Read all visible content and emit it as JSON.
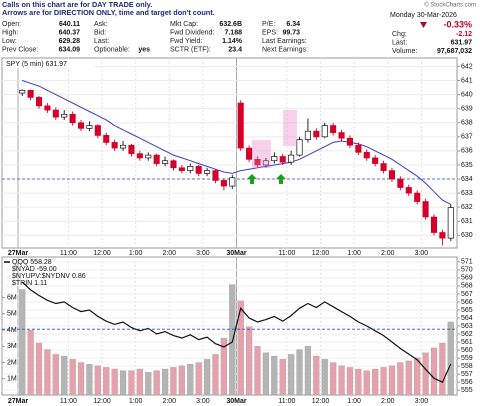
{
  "header": {
    "notes": [
      "Calls on this chart are for DAY TRADE only.",
      "Arrows are for DIRECTION ONLY, time and target don't count."
    ],
    "quote": [
      [
        [
          "Open:",
          "640.11"
        ],
        [
          "High:",
          "640.37"
        ],
        [
          "Low:",
          "629.28"
        ],
        [
          "Prev Close:",
          "634.09"
        ]
      ],
      [
        [
          "Ask:"
        ],
        [
          "Bid:"
        ],
        [
          "Last:"
        ],
        [
          "Optionable:",
          "yes"
        ]
      ],
      [
        [
          "Mkt Cap:",
          "632.6B"
        ],
        [
          "Fwd Dividend:",
          "7.188"
        ],
        [
          "Fwd Yield:",
          "1.14%"
        ],
        [
          "SCTR (ETF):",
          "23.4"
        ]
      ],
      [
        [
          "P/E:",
          "6.34"
        ],
        [
          "EPS:",
          "99.73"
        ],
        [
          "Last Earnings:"
        ],
        [
          "Next Earnings:"
        ]
      ]
    ],
    "copyright": "© StockCharts.com",
    "date": "Monday 30-Mar-2026",
    "pct_change": "-0.33%",
    "summary": [
      [
        "Chg:",
        "-2.12"
      ],
      [
        "Last:",
        "631.97"
      ],
      [
        "Volume:",
        "97,687,032"
      ]
    ]
  },
  "chart_data": [
    {
      "type": "candlestick",
      "title": "SPY (5 min) 631.97",
      "categories": [
        "27Mar",
        null,
        null,
        null,
        null,
        null,
        "11:00",
        null,
        null,
        null,
        "12:00",
        null,
        null,
        null,
        "1:00",
        null,
        null,
        null,
        "2:00",
        null,
        null,
        null,
        "3:00",
        null,
        null,
        null,
        "30Mar",
        null,
        null,
        null,
        null,
        null,
        "11:00",
        null,
        null,
        null,
        "12:00",
        null,
        null,
        null,
        "1:00",
        null,
        null,
        null,
        "2:00",
        null,
        null,
        null,
        "3:00",
        null,
        null,
        null
      ],
      "open": [
        640.11,
        640.3,
        639.8,
        639.2,
        638.9,
        638.4,
        638.6,
        638.0,
        637.6,
        637.8,
        637.1,
        636.6,
        636.2,
        636.4,
        635.8,
        635.5,
        635.7,
        635.1,
        635.3,
        634.8,
        634.6,
        634.9,
        634.4,
        634.6,
        633.9,
        633.5,
        639.4,
        636.2,
        635.4,
        635.0,
        635.3,
        635.6,
        635.2,
        635.7,
        636.8,
        637.4,
        637.0,
        637.8,
        637.3,
        636.9,
        636.4,
        635.9,
        635.5,
        635.1,
        634.6,
        634.0,
        633.4,
        633.0,
        632.4,
        631.3,
        630.2,
        629.8
      ],
      "high": [
        640.37,
        640.35,
        639.9,
        639.4,
        639.1,
        638.9,
        638.8,
        638.2,
        638.1,
        637.9,
        637.3,
        636.8,
        636.7,
        636.5,
        636.0,
        635.9,
        635.8,
        635.6,
        635.4,
        635.0,
        635.1,
        635.0,
        634.8,
        634.7,
        634.0,
        634.3,
        639.6,
        636.4,
        635.6,
        635.5,
        635.9,
        635.8,
        636.0,
        637.0,
        638.3,
        637.6,
        638.0,
        638.0,
        637.5,
        637.1,
        636.6,
        636.1,
        635.7,
        635.3,
        634.8,
        634.2,
        633.6,
        633.2,
        632.6,
        631.5,
        630.4,
        632.2
      ],
      "low": [
        639.9,
        639.6,
        639.0,
        638.7,
        638.2,
        638.2,
        637.8,
        637.4,
        637.4,
        636.9,
        636.4,
        636.0,
        636.0,
        635.6,
        635.3,
        635.3,
        634.9,
        634.9,
        634.6,
        634.4,
        634.4,
        634.2,
        634.2,
        633.7,
        633.2,
        633.3,
        636.0,
        635.2,
        634.8,
        634.8,
        635.1,
        635.0,
        635.0,
        635.6,
        636.6,
        636.8,
        636.9,
        637.1,
        636.7,
        636.2,
        635.7,
        635.3,
        634.9,
        634.4,
        633.8,
        633.2,
        632.8,
        632.2,
        631.1,
        630.0,
        629.28,
        629.6
      ],
      "close": [
        640.3,
        639.8,
        639.2,
        638.9,
        638.4,
        638.6,
        638.0,
        637.6,
        637.8,
        637.1,
        636.6,
        636.2,
        636.4,
        635.8,
        635.5,
        635.7,
        635.1,
        635.3,
        634.8,
        634.6,
        634.9,
        634.4,
        634.6,
        633.9,
        633.5,
        634.09,
        636.2,
        635.4,
        635.0,
        635.3,
        635.6,
        635.2,
        635.7,
        636.8,
        637.4,
        637.0,
        637.8,
        637.3,
        636.9,
        636.4,
        635.9,
        635.5,
        635.1,
        634.6,
        634.0,
        633.4,
        633.0,
        632.4,
        631.3,
        630.2,
        629.8,
        631.97
      ],
      "up_color": "#111111",
      "down_color": "#d4002a",
      "overlay": {
        "color": "#3b3bc9",
        "values": [
          641.0,
          640.8,
          640.6,
          640.3,
          640.0,
          639.7,
          639.4,
          639.1,
          638.8,
          638.5,
          638.2,
          637.8,
          637.5,
          637.2,
          636.9,
          636.6,
          636.3,
          636.0,
          635.7,
          635.5,
          635.3,
          635.1,
          634.9,
          634.7,
          634.5,
          634.4,
          634.6,
          634.7,
          634.8,
          634.9,
          635.0,
          635.1,
          635.2,
          635.4,
          635.7,
          636.0,
          636.3,
          636.6,
          636.7,
          636.6,
          636.5,
          636.3,
          636.0,
          635.7,
          635.4,
          635.0,
          634.6,
          634.2,
          633.7,
          633.1,
          632.5,
          632.2
        ]
      },
      "hline": {
        "value": 634,
        "color": "#2f4fc0"
      },
      "ylim": [
        629.1,
        642.6
      ],
      "yticks": [
        630,
        631,
        632,
        633,
        634,
        635,
        636,
        637,
        638,
        639,
        640,
        641,
        642
      ],
      "grid": true
    },
    {
      "type": "bar",
      "categories": [
        "27Mar",
        null,
        null,
        null,
        null,
        null,
        "11:00",
        null,
        null,
        null,
        "12:00",
        null,
        null,
        null,
        "1:00",
        null,
        null,
        null,
        "2:00",
        null,
        null,
        null,
        "3:00",
        null,
        null,
        null,
        "30Mar",
        null,
        null,
        null,
        null,
        null,
        "11:00",
        null,
        null,
        null,
        "12:00",
        null,
        null,
        null,
        "1:00",
        null,
        null,
        null,
        "2:00",
        null,
        null,
        null,
        "3:00",
        null,
        null,
        null
      ],
      "annotations": [
        "$NYAD -59.00",
        "$NYUPV:$NYDNV 0.86",
        "$TRIN 1.11"
      ],
      "series": [
        {
          "type": "bar",
          "colors": [
            "#e6a1ad",
            "#b4b4b4"
          ],
          "values": [
            6.5,
            4.0,
            3.2,
            2.8,
            2.5,
            2.4,
            2.2,
            2.0,
            1.9,
            1.8,
            1.7,
            1.6,
            1.5,
            1.5,
            1.6,
            1.4,
            1.5,
            1.6,
            1.7,
            1.8,
            1.9,
            2.0,
            2.2,
            2.5,
            3.5,
            6.8,
            5.8,
            4.2,
            3.0,
            2.6,
            2.4,
            2.2,
            2.5,
            2.8,
            3.0,
            2.4,
            2.2,
            2.0,
            1.8,
            1.7,
            1.6,
            1.5,
            1.6,
            1.7,
            1.8,
            2.0,
            2.1,
            2.3,
            2.6,
            2.9,
            3.2,
            4.5
          ]
        },
        {
          "type": "line",
          "name": "QQQ 558.28",
          "color": "#111111",
          "axis": "y2",
          "values": [
            568.5,
            567.5,
            566.8,
            566.2,
            565.8,
            566.0,
            565.3,
            564.8,
            565.0,
            564.2,
            563.6,
            563.2,
            563.5,
            562.8,
            562.4,
            562.7,
            562.0,
            562.3,
            561.8,
            561.5,
            561.9,
            561.3,
            561.6,
            560.8,
            560.4,
            561.0,
            565.2,
            564.0,
            563.5,
            563.8,
            564.2,
            563.6,
            564.3,
            565.2,
            565.8,
            565.3,
            566.0,
            565.4,
            564.8,
            564.2,
            563.5,
            563.0,
            562.4,
            561.8,
            561.0,
            560.2,
            559.5,
            558.8,
            557.6,
            556.5,
            556.0,
            558.28
          ]
        }
      ],
      "hline": {
        "value": 562.6,
        "color": "#2f4fc0"
      },
      "ylim": [
        0,
        8.5
      ],
      "yticks": [
        {
          "value": 1,
          "label": "1M"
        },
        {
          "value": 2,
          "label": "2M"
        },
        {
          "value": 3,
          "label": "3M"
        },
        {
          "value": 4,
          "label": "4M"
        },
        {
          "value": 5,
          "label": "5M"
        },
        {
          "value": 6,
          "label": "6M"
        }
      ],
      "y2lim": [
        554.4,
        571.6
      ],
      "y2ticks": [
        555,
        556,
        557,
        558,
        559,
        560,
        561,
        562,
        563,
        564,
        565,
        566,
        567,
        568,
        569,
        570,
        571
      ],
      "grid": true
    }
  ]
}
